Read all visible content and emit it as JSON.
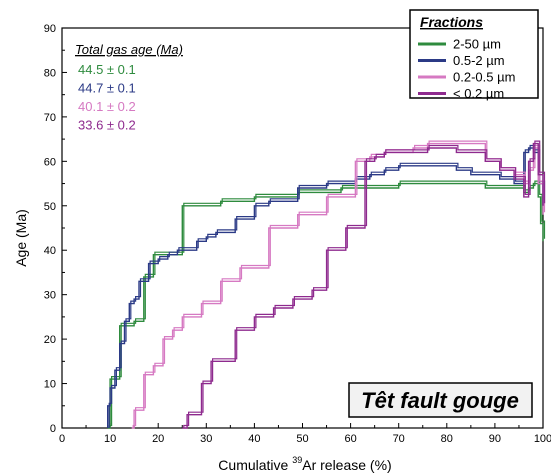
{
  "chart_data": {
    "type": "line",
    "ylabel": "Age (Ma)",
    "xlabel_prefix": "Cumulative ",
    "xlabel_sup": "39",
    "xlabel_suffix": "Ar release (%)",
    "xlim": [
      0,
      100
    ],
    "ylim": [
      0,
      90
    ],
    "x_ticks": [
      "0",
      "10",
      "20",
      "30",
      "40",
      "50",
      "60",
      "70",
      "80",
      "90",
      "100"
    ],
    "y_ticks": [
      "0",
      "10",
      "20",
      "30",
      "40",
      "50",
      "60",
      "70",
      "80",
      "90"
    ],
    "grid": false,
    "legend_title": "Fractions",
    "legend_position": "top-right",
    "annotation_title": "Total gas age (Ma)",
    "annotation_values": [
      {
        "text": "44.5 ± 0.1",
        "color": "#2e8b3e"
      },
      {
        "text": "44.7 ± 0.1",
        "color": "#2b3a86"
      },
      {
        "text": "40.1 ± 0.2",
        "color": "#d679c2"
      },
      {
        "text": "33.6 ± 0.2",
        "color": "#8e2a8e"
      }
    ],
    "label_box": "Têt fault gouge",
    "series": [
      {
        "name": "2-50 µm",
        "color": "#2e8b3e",
        "x": [
          9.5,
          10,
          11,
          12,
          13,
          14,
          15,
          16,
          17,
          18,
          19,
          20,
          22,
          24,
          25,
          27,
          29,
          31,
          33,
          35,
          37,
          40,
          43,
          46,
          49,
          52,
          55,
          58,
          61,
          64,
          67,
          70,
          73,
          76,
          79,
          82,
          85,
          88,
          91,
          94,
          96,
          97,
          98,
          99,
          99.5,
          100
        ],
        "y": [
          0,
          11,
          11,
          23,
          23,
          23,
          24,
          24,
          34,
          34,
          39,
          39,
          39,
          39,
          50,
          50,
          50,
          50,
          51,
          51,
          51,
          52,
          52,
          52,
          53,
          53,
          53,
          54,
          54,
          54,
          54,
          55,
          55,
          55,
          55,
          55,
          55,
          54,
          54,
          54,
          53,
          54,
          55,
          52,
          46,
          42
        ]
      },
      {
        "name": "0.5-2 µm",
        "color": "#2b3a86",
        "x": [
          9.5,
          10,
          11,
          12,
          13,
          14,
          15,
          16,
          17,
          18,
          19,
          20,
          22,
          24,
          26,
          28,
          30,
          32,
          34,
          36,
          38,
          40,
          43,
          46,
          49,
          52,
          55,
          58,
          61,
          64,
          67,
          70,
          73,
          76,
          79,
          82,
          85,
          88,
          91,
          94,
          96,
          97,
          98,
          99,
          100
        ],
        "y": [
          5,
          9,
          13,
          19,
          24,
          28,
          29,
          33,
          33,
          37,
          37,
          38,
          39,
          40,
          40,
          42,
          43,
          44,
          44,
          47,
          47,
          50,
          51,
          51,
          54,
          54,
          55,
          55,
          56,
          57,
          58,
          59,
          59,
          59,
          59,
          58,
          57,
          57,
          56,
          55,
          62,
          63,
          62,
          55,
          50
        ]
      },
      {
        "name": "0.2-0.5 µm",
        "color": "#d679c2",
        "x": [
          14.5,
          15,
          16,
          17,
          18,
          19,
          20,
          21,
          22,
          23,
          24,
          25,
          27,
          29,
          31,
          33,
          35,
          37,
          40,
          43,
          46,
          49,
          52,
          55,
          58,
          61,
          64,
          67,
          70,
          73,
          76,
          79,
          82,
          85,
          88,
          91,
          94,
          96,
          97,
          98,
          99,
          100
        ],
        "y": [
          0,
          4,
          4,
          12,
          12,
          14,
          14,
          20,
          20,
          22,
          22,
          25,
          25,
          28,
          28,
          33,
          33,
          36,
          36,
          45,
          45,
          48,
          48,
          52,
          52,
          60,
          61,
          62,
          62,
          63,
          64,
          64,
          64,
          64,
          60,
          58,
          57,
          55,
          58,
          63,
          55,
          48
        ]
      },
      {
        "name": "< 0.2 µm",
        "color": "#8e2a8e",
        "x": [
          25,
          26,
          27,
          28,
          29,
          30,
          31,
          33,
          35,
          36,
          38,
          40,
          42,
          44,
          46,
          48,
          50,
          52,
          53,
          55,
          57,
          59,
          61,
          63,
          65,
          67,
          70,
          73,
          76,
          79,
          82,
          85,
          88,
          91,
          94,
          96,
          97,
          98,
          99,
          100
        ],
        "y": [
          0,
          3,
          3,
          3,
          10,
          10,
          15,
          15,
          15,
          22,
          22,
          25,
          25,
          27,
          27,
          29,
          29,
          31,
          31,
          40,
          40,
          45,
          45,
          60,
          61,
          62,
          62,
          62,
          63,
          63,
          62,
          62,
          60,
          58,
          56,
          52,
          60,
          64,
          57,
          50
        ]
      }
    ]
  }
}
